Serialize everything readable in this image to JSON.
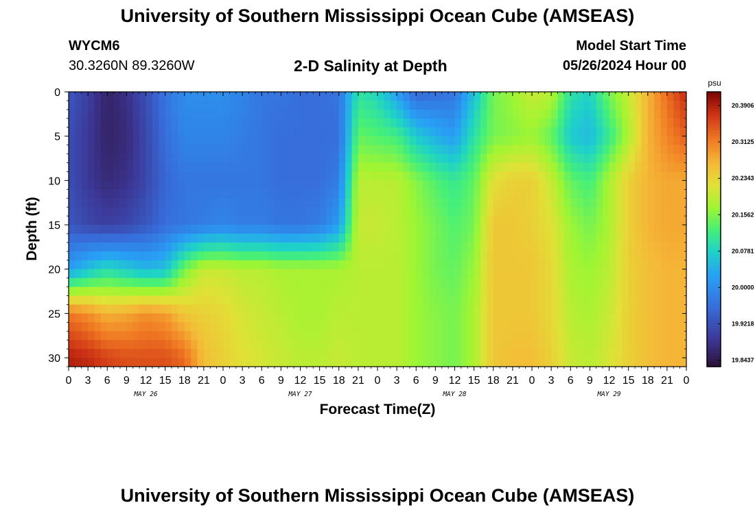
{
  "header": {
    "title": "University of Southern Mississippi Ocean Cube (AMSEAS)",
    "station": "WYCM6",
    "coords": "30.3260N  89.3260W",
    "subtitle": "2-D Salinity at Depth",
    "model_start_label": "Model Start Time",
    "model_start_value": "05/26/2024 Hour 00"
  },
  "footer": {
    "title": "University of Southern Mississippi Ocean Cube (AMSEAS)"
  },
  "chart_data": {
    "type": "heatmap",
    "title": "2-D Salinity at Depth",
    "xlabel": "Forecast Time(Z)",
    "ylabel": "Depth (ft)",
    "x_tick_labels": [
      "0",
      "3",
      "6",
      "9",
      "12",
      "15",
      "18",
      "21",
      "0",
      "3",
      "6",
      "9",
      "12",
      "15",
      "18",
      "21",
      "0",
      "3",
      "6",
      "9",
      "12",
      "15",
      "18",
      "21",
      "0",
      "3",
      "6",
      "9",
      "12",
      "15",
      "18",
      "21",
      "0"
    ],
    "day_labels": [
      "MAY 26",
      "MAY 27",
      "MAY 28",
      "MAY 29"
    ],
    "xlim_hours": [
      0,
      96
    ],
    "y_ticks": [
      0,
      5,
      10,
      15,
      20,
      25,
      30
    ],
    "ylim": [
      0,
      31
    ],
    "colorbar": {
      "unit": "psu",
      "min": 19.83,
      "max": 20.42,
      "tick_values": [
        20.3906,
        20.3125,
        20.2343,
        20.1562,
        20.0781,
        20.0,
        19.9218,
        19.8437
      ],
      "tick_labels": [
        "20.3906",
        "20.3125",
        "20.2343",
        "20.1562",
        "20.0781",
        "20.0000",
        "19.9218",
        "19.8437"
      ]
    },
    "depths_ft": [
      0,
      5,
      10,
      15,
      20,
      25,
      30
    ],
    "times_hours": [
      0,
      3,
      6,
      9,
      12,
      15,
      18,
      21,
      24,
      27,
      30,
      33,
      36,
      39,
      42,
      45,
      48,
      51,
      54,
      57,
      60,
      63,
      66,
      69,
      72,
      75,
      78,
      81,
      84,
      87,
      90,
      93,
      96
    ],
    "salinity_psu": [
      [
        19.93,
        19.9,
        19.86,
        19.88,
        19.92,
        19.97,
        20.0,
        20.0,
        20.0,
        19.99,
        19.97,
        19.97,
        19.96,
        19.96,
        19.97,
        20.1,
        20.08,
        20.02,
        19.95,
        19.96,
        19.97,
        20.06,
        20.15,
        20.17,
        20.2,
        20.19,
        20.1,
        20.08,
        20.15,
        20.2,
        20.27,
        20.33,
        20.38
      ],
      [
        19.92,
        19.89,
        19.86,
        19.87,
        19.91,
        19.96,
        19.99,
        19.99,
        19.99,
        19.98,
        19.97,
        19.96,
        19.96,
        19.96,
        19.96,
        20.14,
        20.13,
        20.12,
        20.07,
        20.04,
        20.02,
        20.1,
        20.15,
        20.16,
        20.17,
        20.14,
        20.07,
        20.05,
        20.11,
        20.18,
        20.27,
        20.31,
        20.34
      ],
      [
        19.92,
        19.89,
        19.87,
        19.88,
        19.91,
        19.95,
        19.97,
        19.97,
        19.97,
        19.97,
        19.97,
        19.96,
        19.96,
        19.96,
        19.98,
        20.19,
        20.19,
        20.19,
        20.16,
        20.13,
        20.11,
        20.14,
        20.22,
        20.24,
        20.24,
        20.2,
        20.14,
        20.12,
        20.18,
        20.24,
        20.27,
        20.28,
        20.28
      ],
      [
        19.93,
        19.91,
        19.9,
        19.91,
        19.93,
        19.96,
        19.97,
        19.98,
        19.99,
        19.98,
        19.98,
        19.97,
        19.97,
        19.98,
        20.02,
        20.2,
        20.2,
        20.19,
        20.17,
        20.15,
        20.13,
        20.15,
        20.25,
        20.25,
        20.24,
        20.22,
        20.17,
        20.15,
        20.18,
        20.24,
        20.27,
        20.28,
        20.28
      ],
      [
        20.02,
        20.06,
        20.09,
        20.07,
        20.05,
        20.06,
        20.15,
        20.2,
        20.2,
        20.19,
        20.19,
        20.18,
        20.18,
        20.18,
        20.18,
        20.19,
        20.19,
        20.19,
        20.17,
        20.15,
        20.14,
        20.17,
        20.25,
        20.25,
        20.25,
        20.23,
        20.18,
        20.17,
        20.19,
        20.24,
        20.26,
        20.27,
        20.27
      ],
      [
        20.32,
        20.3,
        20.27,
        20.28,
        20.3,
        20.29,
        20.25,
        20.24,
        20.23,
        20.21,
        20.2,
        20.19,
        20.18,
        20.18,
        20.19,
        20.19,
        20.19,
        20.19,
        20.17,
        20.16,
        20.15,
        20.18,
        20.25,
        20.25,
        20.25,
        20.23,
        20.19,
        20.18,
        20.2,
        20.24,
        20.26,
        20.27,
        20.27
      ],
      [
        20.39,
        20.38,
        20.36,
        20.35,
        20.35,
        20.35,
        20.33,
        20.26,
        20.24,
        20.22,
        20.21,
        20.2,
        20.19,
        20.19,
        20.2,
        20.19,
        20.19,
        20.19,
        20.17,
        20.16,
        20.15,
        20.18,
        20.25,
        20.26,
        20.26,
        20.24,
        20.2,
        20.19,
        20.21,
        20.24,
        20.26,
        20.27,
        20.27
      ]
    ]
  }
}
